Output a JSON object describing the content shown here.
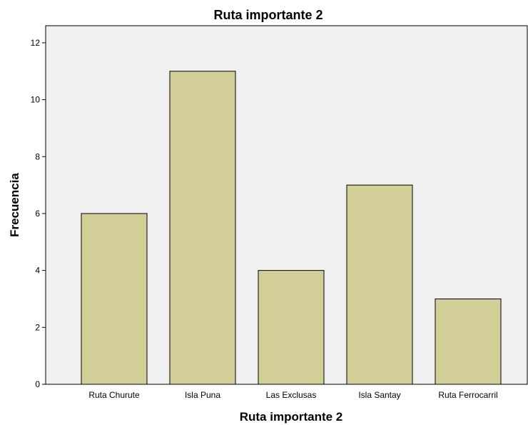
{
  "chart_data": {
    "type": "bar",
    "title": "Ruta importante 2",
    "xlabel": "Ruta importante 2",
    "ylabel": "Frecuencia",
    "categories": [
      "Ruta Churute",
      "Isla Puna",
      "Las Exclusas",
      "Isla Santay",
      "Ruta Ferrocarril"
    ],
    "values": [
      6,
      11,
      4,
      7,
      3
    ],
    "ylim": [
      0,
      12.6
    ],
    "yticks": [
      "0",
      "2",
      "4",
      "6",
      "8",
      "10",
      "12"
    ],
    "grid": false,
    "legend": "none",
    "colors": {
      "bar_fill": "#d3cf98",
      "bar_stroke": "#000000",
      "plot_background": "#f0f0f0"
    }
  }
}
